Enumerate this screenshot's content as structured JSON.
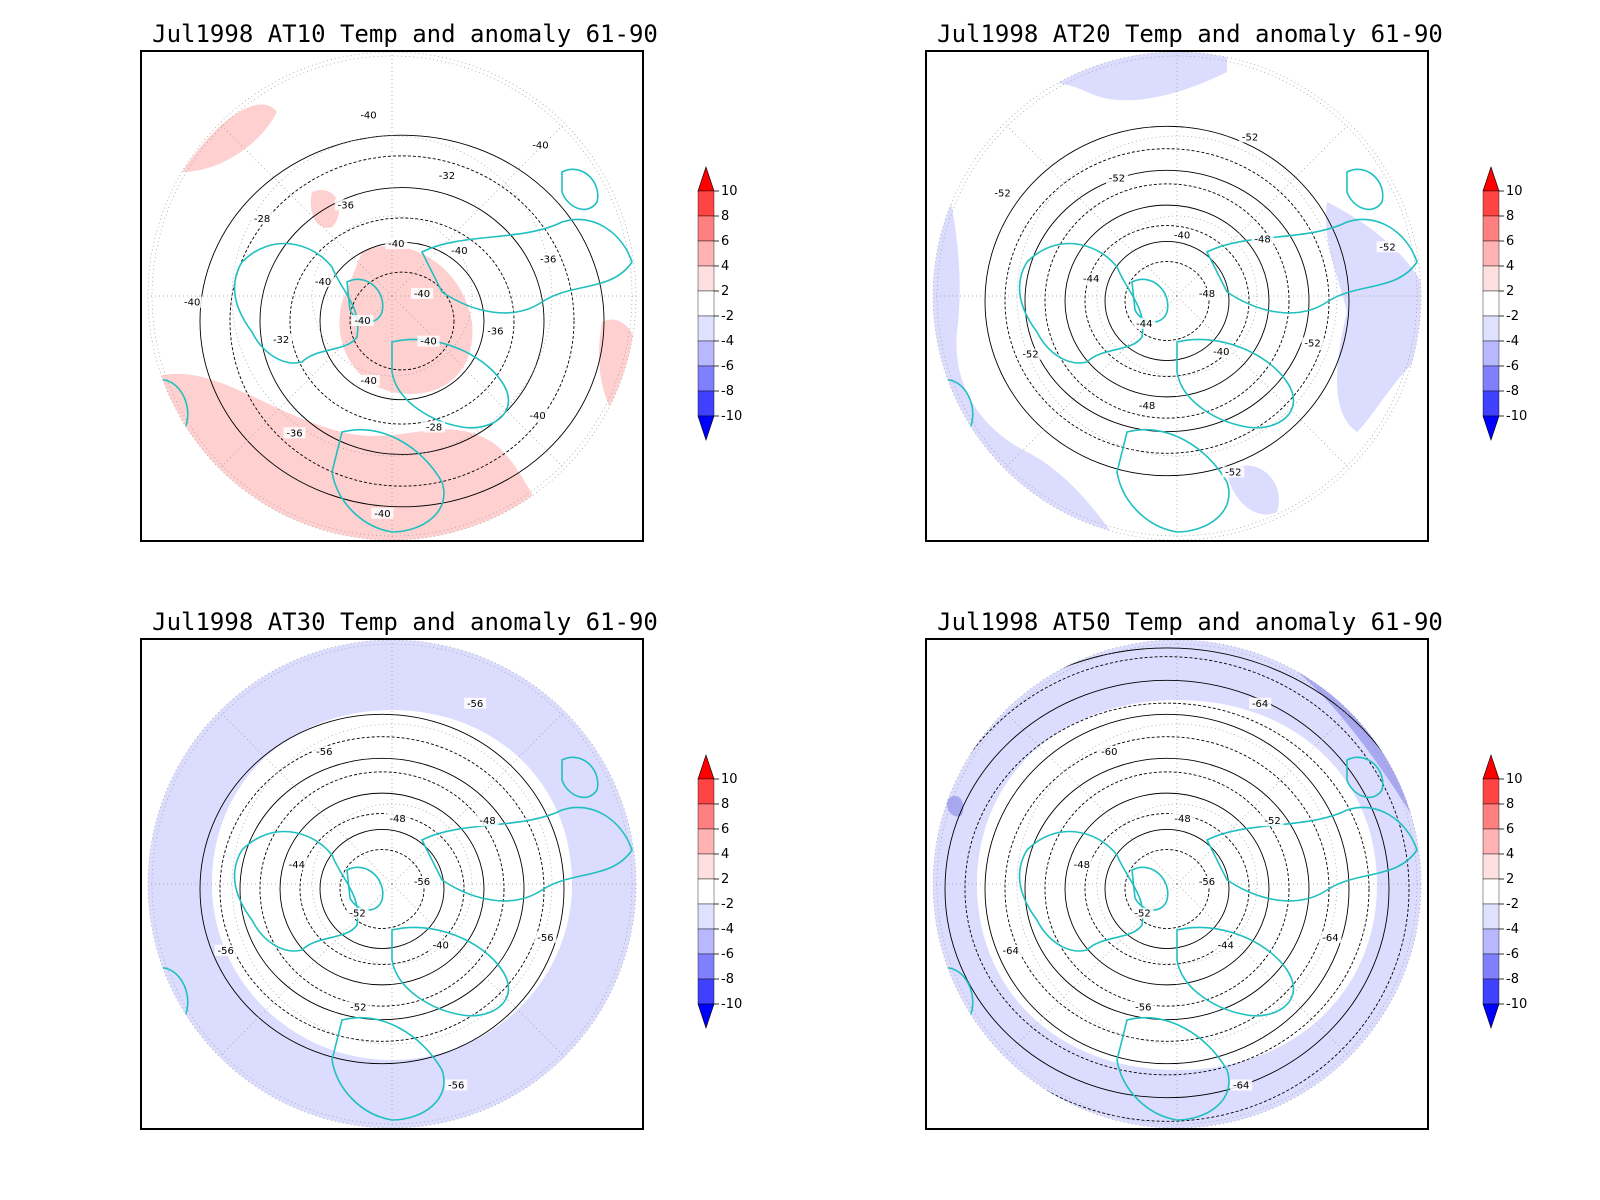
{
  "figure": {
    "panels": [
      {
        "id": "at10",
        "title": "Jul1998 AT10 Temp and anomaly 61-90"
      },
      {
        "id": "at20",
        "title": "Jul1998 AT20 Temp and anomaly 61-90"
      },
      {
        "id": "at30",
        "title": "Jul1998 AT30 Temp and anomaly 61-90"
      },
      {
        "id": "at50",
        "title": "Jul1998 AT50 Temp and anomaly 61-90"
      }
    ],
    "colorbar": {
      "levels": [
        "10",
        "8",
        "6",
        "4",
        "2",
        "-2",
        "-4",
        "-6",
        "-8",
        "-10"
      ],
      "colors": [
        "#ff0000",
        "#ff4444",
        "#ff8080",
        "#ffb3b3",
        "#ffe0e0",
        "#ffffff",
        "#e0e0ff",
        "#b8b8ff",
        "#8080ff",
        "#4040ff",
        "#0000ff"
      ]
    },
    "colors": {
      "coastline": "#20c0c0",
      "warm_anomaly": "#ffd0d0",
      "cold_anomaly": "#dcdcff",
      "strong_cold_anomaly": "#a8a8f0",
      "contour": "#000000",
      "grid": "#999999"
    }
  },
  "chart_data": [
    {
      "type": "heatmap",
      "title": "Jul1998 AT10 Temp and anomaly 61-90",
      "anomaly_shading": "mostly positive, 2 to 4",
      "contour_labels": [
        "-40",
        "-40",
        "-40",
        "-40",
        "-40",
        "-40",
        "-40",
        "-36",
        "-36",
        "-32",
        "-32",
        "-28",
        "-28",
        "-36",
        "-36",
        "-40",
        "-40",
        "-40",
        "-40",
        "-40"
      ]
    },
    {
      "type": "heatmap",
      "title": "Jul1998 AT20 Temp and anomaly 61-90",
      "anomaly_shading": "mostly negative, -2 to -4",
      "contour_labels": [
        "-48",
        "-44",
        "-40",
        "-40",
        "-44",
        "-48",
        "-48",
        "-52",
        "-52",
        "-52",
        "-52",
        "-52",
        "-52",
        "-52"
      ]
    },
    {
      "type": "heatmap",
      "title": "Jul1998 AT30 Temp and anomaly 61-90",
      "anomaly_shading": "mostly negative, -2 to -4",
      "contour_labels": [
        "-56",
        "-52",
        "-48",
        "-40",
        "-44",
        "-48",
        "-52",
        "-56",
        "-56",
        "-56",
        "-56",
        "-56"
      ]
    },
    {
      "type": "heatmap",
      "title": "Jul1998 AT50 Temp and anomaly 61-90",
      "anomaly_shading": "negative, -2 to -6",
      "contour_labels": [
        "-56",
        "-52",
        "-48",
        "-44",
        "-48",
        "-52",
        "-56",
        "-60",
        "-64",
        "-64",
        "-64",
        "-64"
      ]
    }
  ]
}
